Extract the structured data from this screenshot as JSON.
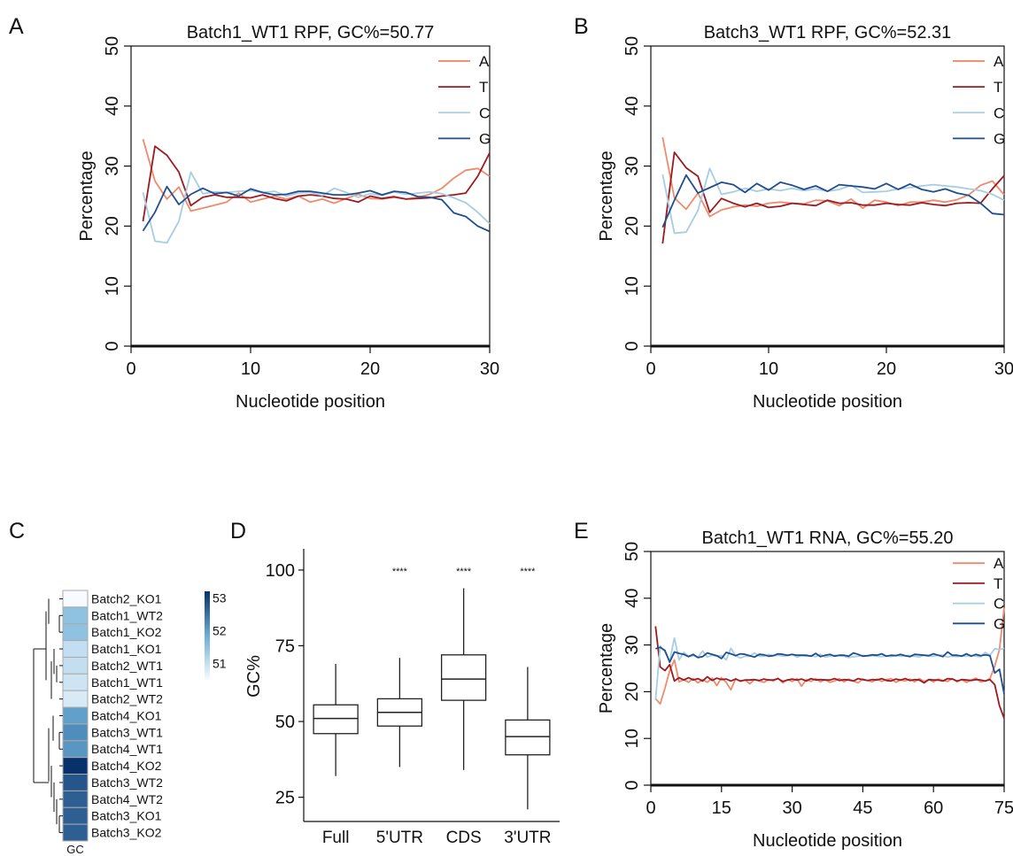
{
  "colors": {
    "A": "#f08a6c",
    "T": "#9c1b21",
    "C": "#a6cde3",
    "G": "#1f4e8f"
  },
  "panel_letters": [
    "A",
    "B",
    "C",
    "D",
    "E"
  ],
  "chart_data": [
    {
      "panel": "A",
      "type": "line",
      "title": "Batch1_WT1 RPF, GC%=50.77",
      "xlabel": "Nucleotide position",
      "ylabel": "Percentage",
      "xlim": [
        0,
        30
      ],
      "ylim": [
        0,
        50
      ],
      "xticks": [
        0,
        10,
        20,
        30
      ],
      "yticks": [
        0,
        10,
        20,
        30,
        40,
        50
      ],
      "legend_position": "top-right",
      "x": [
        1,
        2,
        3,
        4,
        5,
        6,
        7,
        8,
        9,
        10,
        11,
        12,
        13,
        14,
        15,
        16,
        17,
        18,
        19,
        20,
        21,
        22,
        23,
        24,
        25,
        26,
        27,
        28,
        29,
        30
      ],
      "series": [
        {
          "name": "A",
          "values": [
            34.5,
            27.5,
            24.5,
            26.5,
            22.5,
            23.0,
            23.5,
            24.0,
            25.5,
            24.0,
            24.5,
            25.0,
            24.5,
            25.0,
            24.0,
            24.5,
            23.8,
            24.6,
            25.3,
            24.6,
            24.5,
            24.8,
            24.5,
            24.8,
            25.3,
            26.3,
            28.0,
            29.3,
            29.6,
            28.3
          ]
        },
        {
          "name": "T",
          "values": [
            20.8,
            33.3,
            31.8,
            29.0,
            23.4,
            24.8,
            25.2,
            24.8,
            24.8,
            24.7,
            25.2,
            24.6,
            24.2,
            25.0,
            25.2,
            25.0,
            24.6,
            24.5,
            24.0,
            25.0,
            24.6,
            24.9,
            24.5,
            24.6,
            24.7,
            25.0,
            25.2,
            25.5,
            28.3,
            32.2
          ]
        },
        {
          "name": "C",
          "values": [
            25.6,
            17.5,
            17.2,
            20.8,
            29.0,
            25.4,
            25.7,
            25.6,
            25.8,
            25.9,
            25.6,
            25.8,
            25.0,
            25.5,
            25.6,
            25.1,
            26.3,
            25.6,
            24.8,
            25.4,
            25.1,
            25.7,
            25.3,
            25.5,
            25.7,
            25.4,
            24.7,
            23.9,
            22.3,
            20.4
          ]
        },
        {
          "name": "G",
          "values": [
            19.2,
            22.3,
            26.6,
            23.6,
            25.3,
            26.3,
            25.4,
            25.6,
            25.0,
            26.2,
            25.6,
            25.2,
            25.3,
            25.8,
            25.8,
            25.5,
            25.2,
            25.2,
            25.5,
            25.9,
            25.2,
            25.8,
            25.6,
            24.9,
            24.8,
            24.4,
            22.2,
            21.6,
            20.0,
            19.1
          ]
        }
      ]
    },
    {
      "panel": "B",
      "type": "line",
      "title": "Batch3_WT1 RPF, GC%=52.31",
      "xlabel": "Nucleotide position",
      "ylabel": "Percentage",
      "xlim": [
        0,
        30
      ],
      "ylim": [
        0,
        50
      ],
      "xticks": [
        0,
        10,
        20,
        30
      ],
      "yticks": [
        0,
        10,
        20,
        30,
        40,
        50
      ],
      "legend_position": "top-right",
      "x": [
        1,
        2,
        3,
        4,
        5,
        6,
        7,
        8,
        9,
        10,
        11,
        12,
        13,
        14,
        15,
        16,
        17,
        18,
        19,
        20,
        21,
        22,
        23,
        24,
        25,
        26,
        27,
        28,
        29,
        30
      ],
      "series": [
        {
          "name": "A",
          "values": [
            34.8,
            24.7,
            22.8,
            25.5,
            21.6,
            22.7,
            23.2,
            23.5,
            23.3,
            23.8,
            24.0,
            23.8,
            23.7,
            24.3,
            24.2,
            23.4,
            24.5,
            23.0,
            24.3,
            24.0,
            23.4,
            24.0,
            24.0,
            24.3,
            24.0,
            24.4,
            25.2,
            26.8,
            27.5,
            25.2
          ]
        },
        {
          "name": "T",
          "values": [
            17.1,
            32.3,
            29.7,
            28.3,
            22.3,
            24.6,
            23.8,
            23.2,
            23.8,
            23.1,
            23.3,
            23.8,
            23.6,
            23.4,
            24.3,
            23.8,
            23.9,
            23.5,
            23.5,
            23.8,
            23.6,
            23.5,
            23.9,
            23.6,
            23.4,
            23.8,
            23.9,
            23.8,
            26.2,
            28.4
          ]
        },
        {
          "name": "C",
          "values": [
            28.6,
            18.8,
            19.0,
            22.6,
            29.6,
            25.3,
            25.7,
            26.3,
            25.8,
            26.2,
            25.9,
            26.3,
            25.9,
            26.2,
            25.8,
            26.1,
            26.8,
            25.6,
            25.7,
            25.8,
            26.2,
            26.4,
            26.7,
            26.9,
            26.7,
            26.5,
            26.2,
            25.9,
            25.3,
            24.3
          ]
        },
        {
          "name": "G",
          "values": [
            19.8,
            24.3,
            28.5,
            25.5,
            26.4,
            27.3,
            26.9,
            25.6,
            27.1,
            26.0,
            27.3,
            26.8,
            26.1,
            26.7,
            25.8,
            26.9,
            26.7,
            26.5,
            26.2,
            27.1,
            26.1,
            27.0,
            26.1,
            25.7,
            26.2,
            25.5,
            25.1,
            23.8,
            22.1,
            21.9
          ]
        }
      ]
    },
    {
      "panel": "C",
      "type": "heatmap",
      "column_label": "GC",
      "rows": [
        "Batch2_KO1",
        "Batch1_WT2",
        "Batch1_KO2",
        "Batch1_KO1",
        "Batch2_WT1",
        "Batch1_WT1",
        "Batch2_WT2",
        "Batch4_KO1",
        "Batch3_WT1",
        "Batch4_WT1",
        "Batch4_KO2",
        "Batch3_WT2",
        "Batch4_WT2",
        "Batch3_KO1",
        "Batch3_KO2"
      ],
      "values": [
        50.5,
        51.5,
        51.5,
        51.0,
        51.0,
        50.9,
        50.8,
        52.0,
        52.2,
        52.1,
        53.2,
        52.8,
        52.7,
        52.7,
        52.7
      ],
      "colorbar_range": [
        50.5,
        53.2
      ],
      "colorbar_ticks": [
        51,
        52,
        53
      ],
      "colorbar_colors": [
        "#f7fbff",
        "#08306b"
      ]
    },
    {
      "panel": "D",
      "type": "boxplot",
      "ylabel": "GC%",
      "ylim": [
        17,
        107
      ],
      "yticks": [
        25,
        50,
        75,
        100
      ],
      "categories": [
        "Full",
        "5'UTR",
        "CDS",
        "3'UTR"
      ],
      "boxes": [
        {
          "whisker_low": 32,
          "q1": 46,
          "median": 51,
          "q3": 55.5,
          "whisker_high": 69
        },
        {
          "whisker_low": 35,
          "q1": 48.5,
          "median": 53,
          "q3": 57.5,
          "whisker_high": 71
        },
        {
          "whisker_low": 34,
          "q1": 57,
          "median": 64,
          "q3": 72,
          "whisker_high": 94
        },
        {
          "whisker_low": 21,
          "q1": 39,
          "median": 45,
          "q3": 50.5,
          "whisker_high": 68
        }
      ],
      "significance": [
        "",
        "****",
        "****",
        "****"
      ]
    },
    {
      "panel": "E",
      "type": "line",
      "title": "Batch1_WT1 RNA, GC%=55.20",
      "xlabel": "Nucleotide position",
      "ylabel": "Percentage",
      "xlim": [
        0,
        75
      ],
      "ylim": [
        0,
        50
      ],
      "xticks": [
        0,
        15,
        30,
        45,
        60,
        75
      ],
      "yticks": [
        0,
        10,
        20,
        30,
        40,
        50
      ],
      "legend_position": "top-right",
      "x": [
        1,
        2,
        3,
        4,
        5,
        6,
        7,
        8,
        9,
        10,
        11,
        12,
        13,
        14,
        15,
        16,
        17,
        18,
        19,
        20,
        21,
        22,
        23,
        24,
        25,
        26,
        27,
        28,
        29,
        30,
        31,
        32,
        33,
        34,
        35,
        36,
        37,
        38,
        39,
        40,
        41,
        42,
        43,
        44,
        45,
        46,
        47,
        48,
        49,
        50,
        51,
        52,
        53,
        54,
        55,
        56,
        57,
        58,
        59,
        60,
        61,
        62,
        63,
        64,
        65,
        66,
        67,
        68,
        69,
        70,
        71,
        72,
        73,
        74,
        75
      ],
      "series": [
        {
          "name": "A",
          "values": [
            18.5,
            17.4,
            20.8,
            24.5,
            26.8,
            22.1,
            22.6,
            22.0,
            22.8,
            21.9,
            22.6,
            22.0,
            22.9,
            21.3,
            23.0,
            22.0,
            20.4,
            22.8,
            22.2,
            22.5,
            21.7,
            22.6,
            22.3,
            22.0,
            22.6,
            22.3,
            22.9,
            21.9,
            22.6,
            22.2,
            22.8,
            21.2,
            22.6,
            22.2,
            22.8,
            22.1,
            22.6,
            22.0,
            22.3,
            22.8,
            22.1,
            22.7,
            22.3,
            21.9,
            22.7,
            22.4,
            22.1,
            22.7,
            22.2,
            22.6,
            22.8,
            22.0,
            22.5,
            22.3,
            22.7,
            22.1,
            22.8,
            22.2,
            22.6,
            22.1,
            22.7,
            22.4,
            22.2,
            22.8,
            22.1,
            22.6,
            22.0,
            22.5,
            22.9,
            22.1,
            22.3,
            22.8,
            25.5,
            29.0,
            38.0
          ]
        },
        {
          "name": "T",
          "values": [
            34.0,
            25.3,
            24.5,
            25.8,
            22.3,
            23.0,
            22.5,
            23.0,
            22.5,
            22.8,
            22.3,
            23.2,
            22.4,
            22.9,
            22.6,
            22.7,
            22.3,
            22.7,
            22.3,
            22.5,
            22.5,
            22.6,
            22.4,
            22.7,
            22.5,
            22.5,
            22.8,
            22.2,
            22.5,
            22.7,
            22.5,
            22.7,
            22.3,
            22.8,
            22.5,
            22.6,
            22.5,
            22.5,
            22.8,
            22.4,
            22.6,
            22.5,
            22.3,
            22.8,
            22.6,
            22.4,
            22.6,
            22.5,
            22.8,
            22.4,
            22.3,
            22.7,
            22.5,
            22.8,
            22.4,
            22.6,
            22.5,
            21.9,
            22.6,
            22.5,
            22.5,
            22.3,
            22.8,
            22.7,
            22.3,
            22.6,
            22.5,
            22.4,
            22.6,
            22.5,
            22.3,
            22.6,
            21.5,
            17.0,
            14.3
          ]
        },
        {
          "name": "C",
          "values": [
            18.2,
            29.8,
            28.5,
            26.5,
            31.5,
            26.8,
            28.4,
            27.6,
            27.7,
            27.4,
            28.7,
            27.4,
            27.8,
            27.6,
            27.7,
            26.8,
            29.3,
            27.7,
            27.2,
            27.6,
            27.6,
            28.3,
            27.6,
            27.6,
            28.0,
            27.7,
            27.8,
            27.6,
            27.7,
            28.0,
            27.4,
            27.7,
            27.6,
            27.7,
            27.5,
            28.0,
            27.4,
            27.6,
            27.8,
            27.7,
            27.6,
            27.3,
            27.5,
            27.6,
            27.8,
            27.6,
            27.7,
            27.6,
            27.5,
            27.7,
            27.5,
            27.8,
            27.6,
            27.7,
            27.7,
            27.6,
            27.4,
            27.8,
            27.6,
            27.6,
            27.8,
            27.8,
            27.4,
            27.6,
            27.5,
            27.7,
            27.6,
            27.8,
            27.6,
            27.5,
            28.4,
            27.8,
            29.2,
            29.0,
            29.3
          ]
        },
        {
          "name": "G",
          "values": [
            29.2,
            29.5,
            28.8,
            26.3,
            28.5,
            28.2,
            28.0,
            27.5,
            28.0,
            27.3,
            27.5,
            28.3,
            28.0,
            27.7,
            27.1,
            28.4,
            28.1,
            27.7,
            28.1,
            28.0,
            27.7,
            27.4,
            28.0,
            27.9,
            27.6,
            27.7,
            28.1,
            28.0,
            27.8,
            28.0,
            27.8,
            27.8,
            27.8,
            27.6,
            28.2,
            27.5,
            27.8,
            28.0,
            27.6,
            27.8,
            27.8,
            27.6,
            28.3,
            28.0,
            27.6,
            27.7,
            27.9,
            27.8,
            28.1,
            27.6,
            27.8,
            27.7,
            28.0,
            27.7,
            27.5,
            28.0,
            27.9,
            27.8,
            27.7,
            28.1,
            27.8,
            27.5,
            28.5,
            27.8,
            27.8,
            27.6,
            28.1,
            27.6,
            28.0,
            27.7,
            27.9,
            27.7,
            24.0,
            24.8,
            19.5
          ]
        }
      ]
    }
  ]
}
